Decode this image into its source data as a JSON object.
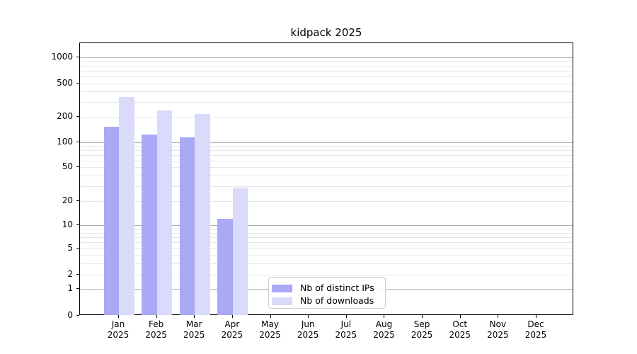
{
  "title": "kidpack 2025",
  "chart_data": {
    "type": "bar",
    "title": "kidpack 2025",
    "year": "2025",
    "categories": [
      "Jan",
      "Feb",
      "Mar",
      "Apr",
      "May",
      "Jun",
      "Jul",
      "Aug",
      "Sep",
      "Oct",
      "Nov",
      "Dec"
    ],
    "series": [
      {
        "name": "Nb of distinct IPs",
        "color": "#a9a9f6",
        "values": [
          152,
          123,
          114,
          12,
          0,
          0,
          0,
          0,
          0,
          0,
          0,
          0
        ]
      },
      {
        "name": "Nb of downloads",
        "color": "#dadafa",
        "values": [
          345,
          236,
          214,
          29,
          0,
          0,
          0,
          0,
          0,
          0,
          0,
          0
        ]
      }
    ],
    "yticks": [
      0,
      1,
      2,
      5,
      10,
      20,
      50,
      100,
      200,
      500,
      1000
    ],
    "scale": "asinh (log above 1, linear near 0)",
    "ylim": [
      0,
      2000
    ],
    "grid": true,
    "legend_position": "lower center",
    "xlabel": "",
    "ylabel": ""
  },
  "colors": {
    "bar_dark": "#a9a9f6",
    "bar_light": "#dadafa",
    "grid_major": "#b0b0b0",
    "grid_minor": "#e7e7e7",
    "axis": "#000000",
    "legend_border": "#cccccc"
  }
}
